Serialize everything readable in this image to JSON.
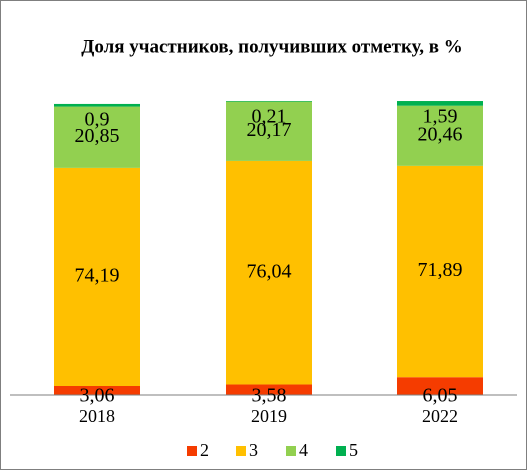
{
  "chart_data": {
    "type": "stacked_bar",
    "title": "Доля участников, получивших отметку, в %",
    "categories": [
      "2018",
      "2019",
      "2022"
    ],
    "ylim": [
      0,
      100
    ],
    "legend": "bottom",
    "series": [
      {
        "name": "2",
        "color": "#f53c00",
        "values": [
          3.06,
          3.58,
          6.05
        ],
        "value_labels": [
          "3,06",
          "3,58",
          "6,05"
        ]
      },
      {
        "name": "3",
        "color": "#ffc000",
        "values": [
          74.19,
          76.04,
          71.89
        ],
        "value_labels": [
          "74,19",
          "76,04",
          "71,89"
        ]
      },
      {
        "name": "4",
        "color": "#92d050",
        "values": [
          20.85,
          20.17,
          20.46
        ],
        "value_labels": [
          "20,85",
          "20,17",
          "20,46"
        ]
      },
      {
        "name": "5",
        "color": "#00b050",
        "values": [
          0.9,
          0.21,
          1.59
        ],
        "value_labels": [
          "0,9",
          "0,21",
          "1,59"
        ]
      }
    ]
  }
}
